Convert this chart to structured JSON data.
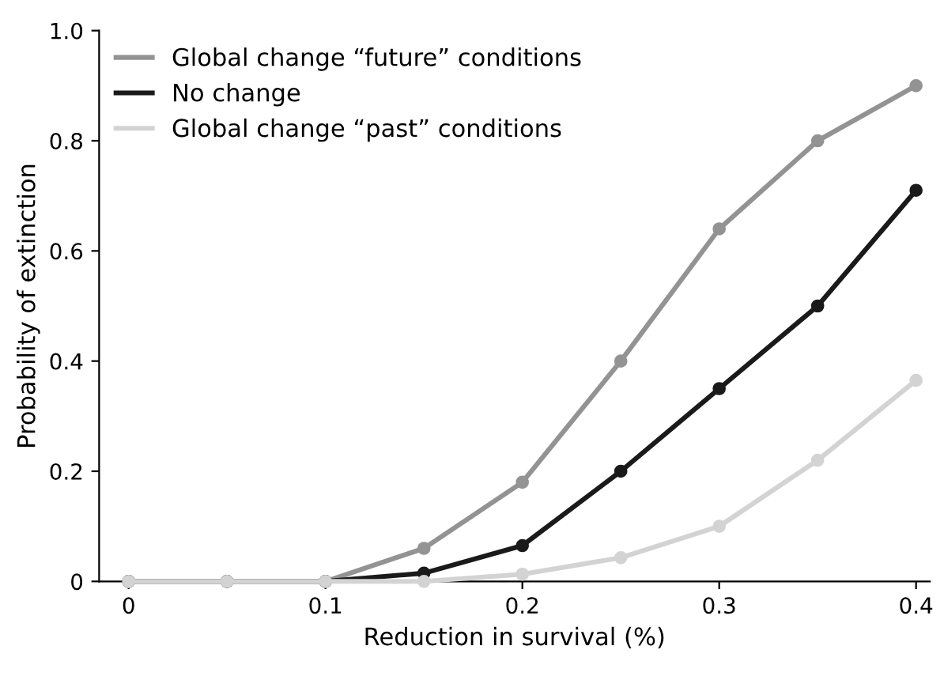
{
  "chart_data": {
    "type": "line",
    "xlabel": "Reduction in survival (%)",
    "ylabel": "Probability of extinction",
    "x": [
      0,
      0.05,
      0.1,
      0.15,
      0.2,
      0.25,
      0.3,
      0.35,
      0.4
    ],
    "series": [
      {
        "name": "Global change “future” conditions",
        "color": "#939393",
        "values": [
          0,
          0,
          0,
          0.06,
          0.18,
          0.4,
          0.64,
          0.8,
          0.9
        ]
      },
      {
        "name": "No change",
        "color": "#1a1a1a",
        "values": [
          0,
          0,
          0,
          0.015,
          0.065,
          0.2,
          0.35,
          0.5,
          0.71
        ]
      },
      {
        "name": "Global change “past” conditions",
        "color": "#d3d3d3",
        "values": [
          0,
          0,
          0,
          0,
          0.013,
          0.043,
          0.1,
          0.22,
          0.365
        ]
      }
    ],
    "xlim": [
      -0.015,
      0.407
    ],
    "xticks": [
      0,
      0.1,
      0.2,
      0.3,
      0.4
    ],
    "ylim": [
      0,
      1.0
    ],
    "yticks": [
      0,
      0.2,
      0.4,
      0.6,
      0.8,
      {
        "value": 1,
        "label": "1.0"
      }
    ],
    "grid": false,
    "legend": "top left",
    "marker": "circle",
    "line_style": "solid"
  }
}
